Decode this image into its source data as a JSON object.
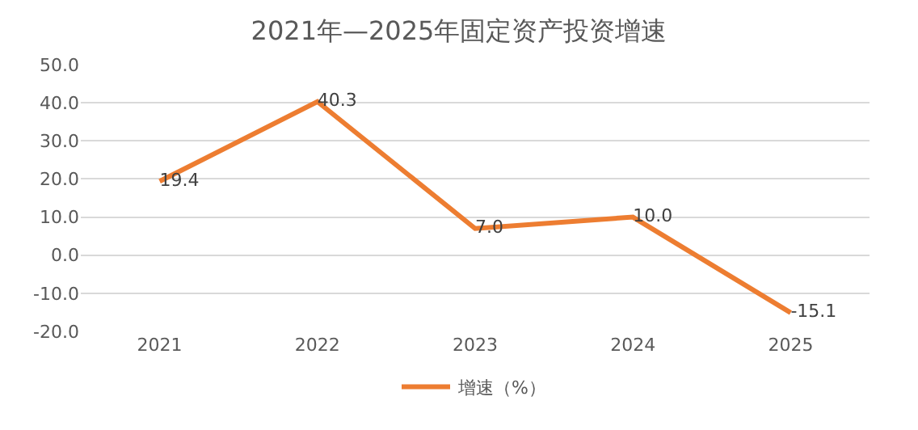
{
  "chart_data": {
    "type": "line",
    "title": "2021年—2025年固定资产投资增速",
    "categories": [
      "2021",
      "2022",
      "2023",
      "2024",
      "2025"
    ],
    "series": [
      {
        "name": "增速（%）",
        "color": "#ed7d31",
        "values": [
          19.4,
          40.3,
          7.0,
          10.0,
          -15.1
        ],
        "value_labels": [
          "19.4",
          "40.3",
          "7.0",
          "10.0",
          "-15.1"
        ]
      }
    ],
    "ylim": [
      -20,
      50
    ],
    "yticks": [
      {
        "value": -20,
        "label": "-20.0"
      },
      {
        "value": -10,
        "label": "-10.0"
      },
      {
        "value": 0,
        "label": "0.0"
      },
      {
        "value": 10,
        "label": "10.0"
      },
      {
        "value": 20,
        "label": "20.0"
      },
      {
        "value": 30,
        "label": "30.0"
      },
      {
        "value": 40,
        "label": "40.0"
      },
      {
        "value": 50,
        "label": "50.0"
      }
    ],
    "grid": "y",
    "legend": "bottom",
    "marker": "none",
    "line_style": "solid"
  }
}
